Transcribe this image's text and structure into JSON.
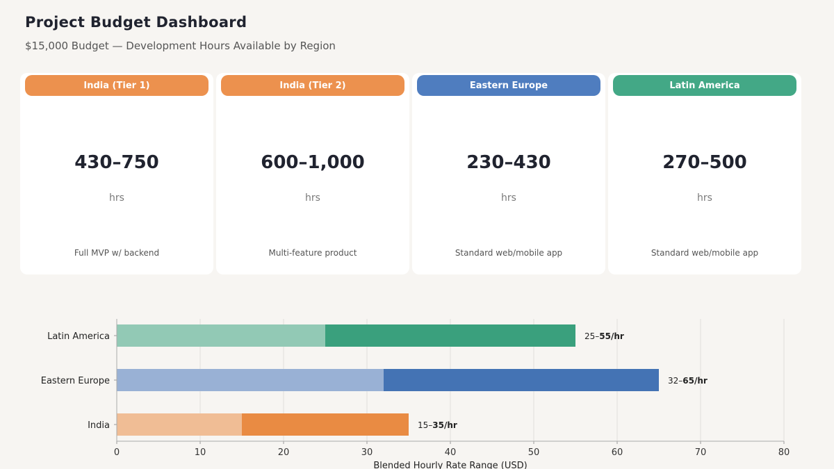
{
  "header": {
    "title": "Project Budget Dashboard",
    "subtitle": "$15,000 Budget — Development Hours Available by Region"
  },
  "cards": [
    {
      "region": "India (Tier 1)",
      "hours": "430–750",
      "unit": "hrs",
      "description": "Full MVP w/ backend",
      "color": "#ec914e"
    },
    {
      "region": "India (Tier 2)",
      "hours": "600–1,000",
      "unit": "hrs",
      "description": "Multi-feature product",
      "color": "#ec914e"
    },
    {
      "region": "Eastern Europe",
      "hours": "230–430",
      "unit": "hrs",
      "description": "Standard web/mobile app",
      "color": "#4f7dbf"
    },
    {
      "region": "Latin America",
      "hours": "270–500",
      "unit": "hrs",
      "description": "Standard web/mobile app",
      "color": "#43a886"
    }
  ],
  "chart_data": {
    "type": "bar",
    "orientation": "horizontal",
    "categories": [
      "Latin America",
      "Eastern Europe",
      "India"
    ],
    "series": [
      {
        "low": 25,
        "high": 55,
        "color_light": "#92c9b5",
        "color_dark": "#3aa07d"
      },
      {
        "low": 32,
        "high": 65,
        "color_light": "#99b1d5",
        "color_dark": "#4473b4"
      },
      {
        "low": 15,
        "high": 35,
        "color_light": "#f0bd95",
        "color_dark": "#e98b43"
      }
    ],
    "labels": [
      {
        "prefix": "25–",
        "bold": "55/hr"
      },
      {
        "prefix": "32–",
        "bold": "65/hr"
      },
      {
        "prefix": "15–",
        "bold": "35/hr"
      }
    ],
    "xlabel": "Blended Hourly Rate Range (USD)",
    "xlim": [
      0,
      80
    ],
    "xticks": [
      "0",
      "10",
      "20",
      "30",
      "40",
      "50",
      "60",
      "70",
      "80"
    ],
    "grid": true
  }
}
